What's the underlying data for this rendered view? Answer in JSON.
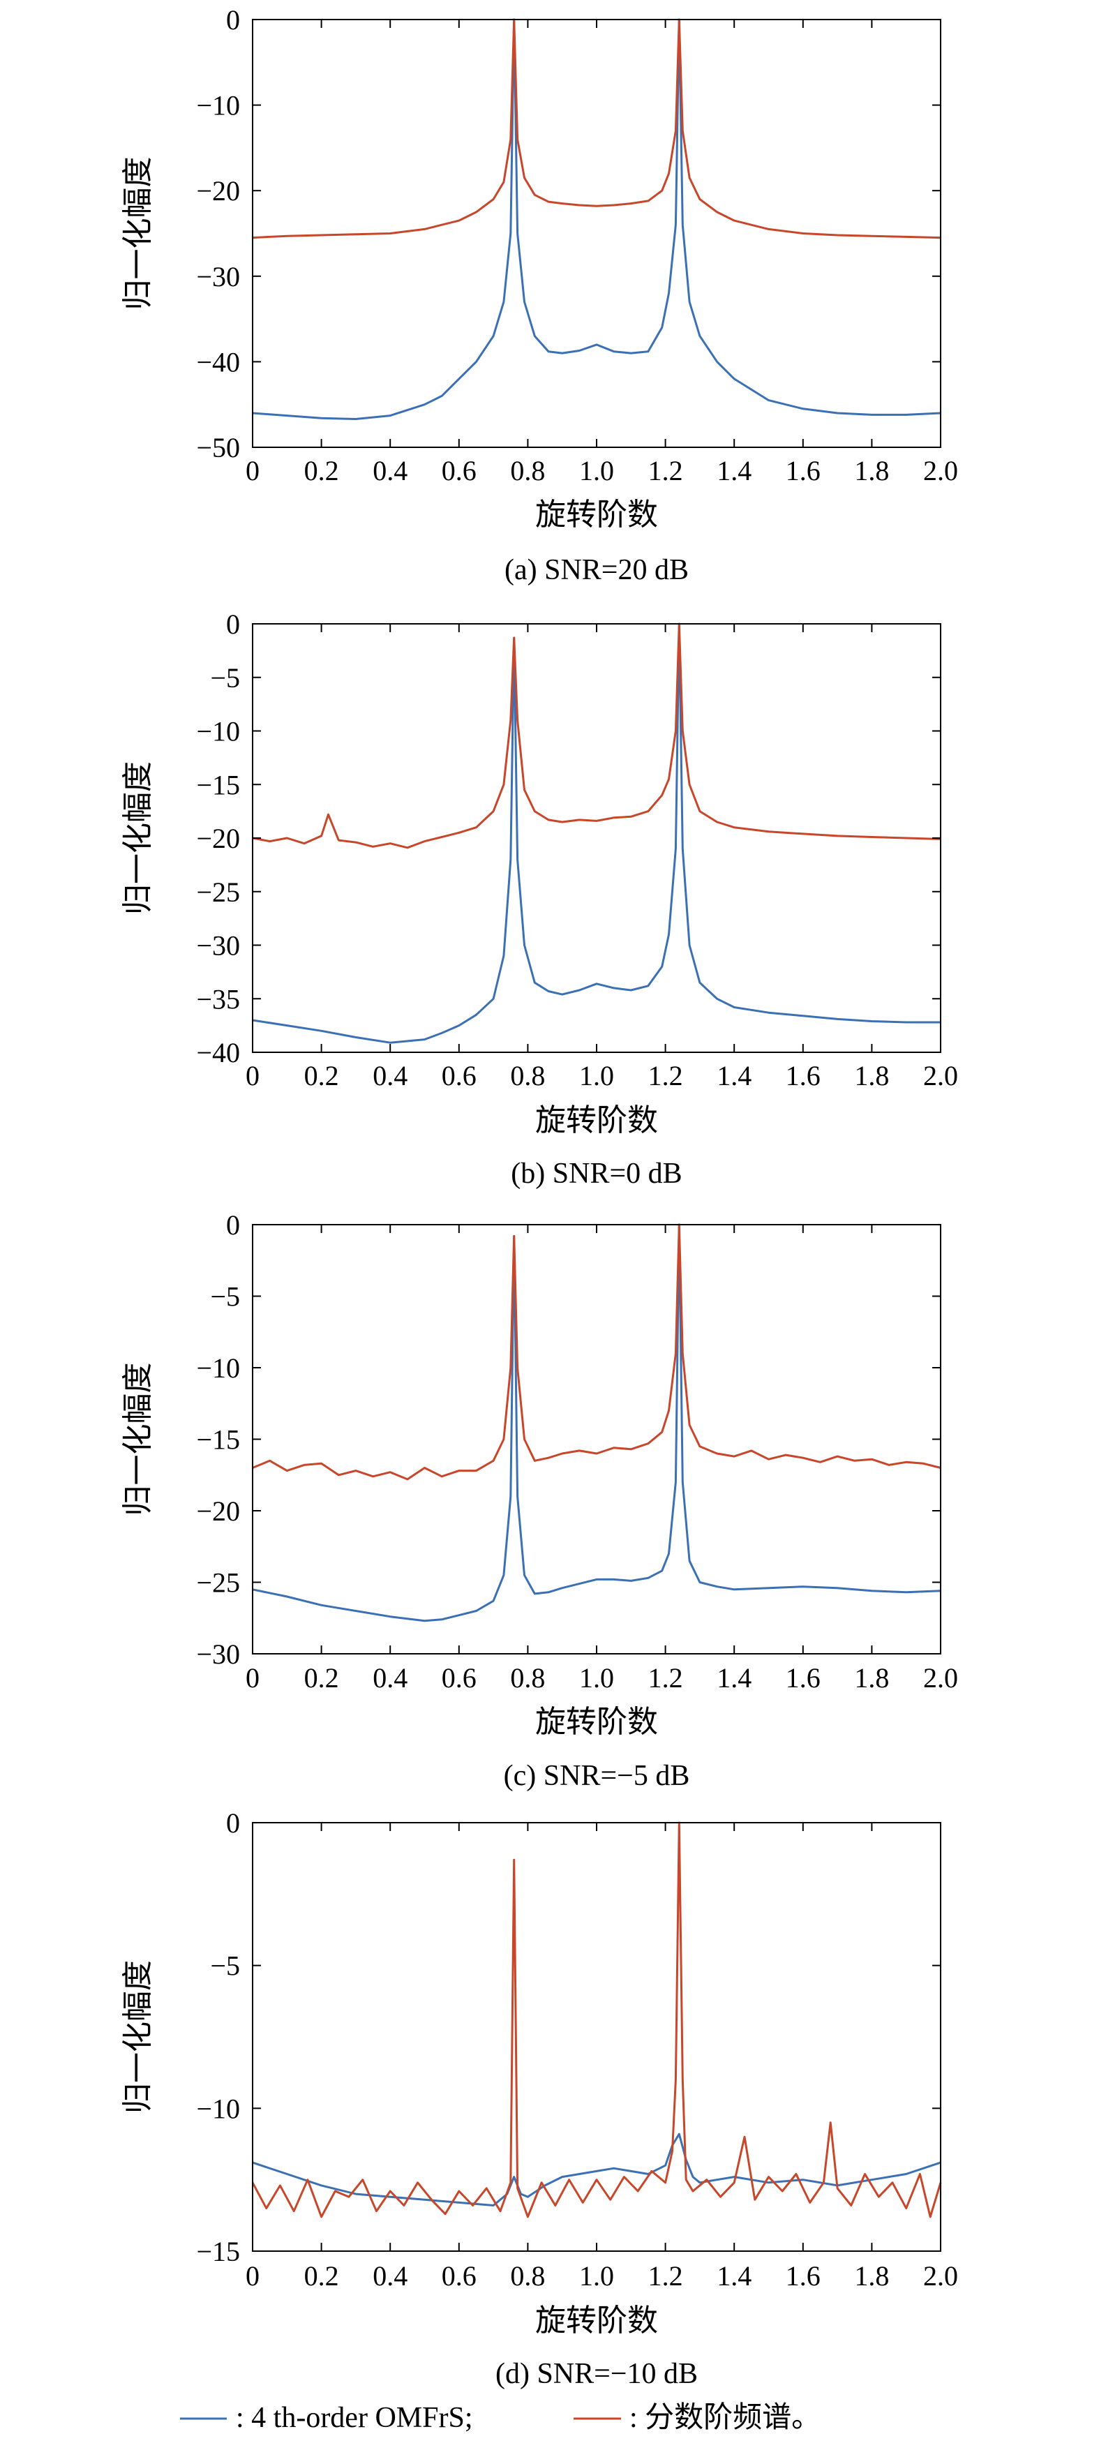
{
  "colors": {
    "blue": "#3b70b5",
    "red": "#c8472a"
  },
  "legend": [
    {
      "label": ": 4 th-order OMFrS;",
      "color": "#3b70b5"
    },
    {
      "label": ": 分数阶频谱。",
      "color": "#c8472a"
    }
  ],
  "chart_data": [
    {
      "type": "line",
      "caption": "(a) SNR=20 dB",
      "xlabel": "旋转阶数",
      "ylabel": "归一化幅度",
      "xlim": [
        0,
        2.0
      ],
      "ylim": [
        -50,
        0
      ],
      "xticks": [
        "0",
        "0.2",
        "0.4",
        "0.6",
        "0.8",
        "1.0",
        "1.2",
        "1.4",
        "1.6",
        "1.8",
        "2.0"
      ],
      "yticks": [
        "0",
        "−10",
        "−20",
        "−30",
        "−40",
        "−50"
      ],
      "series": [
        {
          "color": "#3b70b5",
          "x": [
            0,
            0.1,
            0.2,
            0.3,
            0.4,
            0.5,
            0.55,
            0.6,
            0.65,
            0.7,
            0.73,
            0.75,
            0.76,
            0.77,
            0.79,
            0.82,
            0.86,
            0.9,
            0.95,
            1.0,
            1.05,
            1.1,
            1.15,
            1.19,
            1.21,
            1.23,
            1.24,
            1.25,
            1.27,
            1.3,
            1.35,
            1.4,
            1.5,
            1.6,
            1.7,
            1.8,
            1.9,
            2.0
          ],
          "y": [
            -46,
            -46.3,
            -46.6,
            -46.7,
            -46.3,
            -45,
            -44,
            -42,
            -40,
            -37,
            -33,
            -25,
            0,
            -25,
            -33,
            -37,
            -38.8,
            -39,
            -38.7,
            -38,
            -38.8,
            -39,
            -38.8,
            -36,
            -32,
            -24,
            0,
            -24,
            -33,
            -37,
            -40,
            -42,
            -44.5,
            -45.5,
            -46,
            -46.2,
            -46.2,
            -46
          ]
        },
        {
          "color": "#c8472a",
          "x": [
            0,
            0.1,
            0.2,
            0.3,
            0.4,
            0.5,
            0.55,
            0.6,
            0.65,
            0.7,
            0.73,
            0.75,
            0.76,
            0.77,
            0.79,
            0.82,
            0.86,
            0.9,
            0.95,
            1.0,
            1.05,
            1.1,
            1.15,
            1.19,
            1.21,
            1.23,
            1.24,
            1.25,
            1.27,
            1.3,
            1.35,
            1.4,
            1.5,
            1.6,
            1.7,
            1.8,
            1.9,
            2.0
          ],
          "y": [
            -25.5,
            -25.3,
            -25.2,
            -25.1,
            -25,
            -24.5,
            -24,
            -23.5,
            -22.5,
            -21,
            -19,
            -14,
            0,
            -14,
            -18.5,
            -20.5,
            -21.3,
            -21.5,
            -21.7,
            -21.8,
            -21.7,
            -21.5,
            -21.2,
            -20,
            -18,
            -13,
            0,
            -13,
            -18.5,
            -21,
            -22.5,
            -23.5,
            -24.5,
            -25,
            -25.2,
            -25.3,
            -25.4,
            -25.5
          ]
        }
      ]
    },
    {
      "type": "line",
      "caption": "(b) SNR=0 dB",
      "xlabel": "旋转阶数",
      "ylabel": "归一化幅度",
      "xlim": [
        0,
        2.0
      ],
      "ylim": [
        -40,
        0
      ],
      "xticks": [
        "0",
        "0.2",
        "0.4",
        "0.6",
        "0.8",
        "1.0",
        "1.2",
        "1.4",
        "1.6",
        "1.8",
        "2.0"
      ],
      "yticks": [
        "0",
        "−5",
        "−10",
        "−15",
        "−20",
        "−25",
        "−30",
        "−35",
        "−40"
      ],
      "series": [
        {
          "color": "#3b70b5",
          "x": [
            0,
            0.1,
            0.2,
            0.3,
            0.4,
            0.5,
            0.55,
            0.6,
            0.65,
            0.7,
            0.73,
            0.75,
            0.76,
            0.77,
            0.79,
            0.82,
            0.86,
            0.9,
            0.95,
            1.0,
            1.05,
            1.1,
            1.15,
            1.19,
            1.21,
            1.23,
            1.24,
            1.25,
            1.27,
            1.3,
            1.35,
            1.4,
            1.5,
            1.6,
            1.7,
            1.8,
            1.9,
            2.0
          ],
          "y": [
            -37,
            -37.5,
            -38,
            -38.6,
            -39.1,
            -38.8,
            -38.2,
            -37.5,
            -36.5,
            -35,
            -31,
            -22,
            -1.3,
            -22,
            -30,
            -33.5,
            -34.3,
            -34.6,
            -34.2,
            -33.6,
            -34,
            -34.2,
            -33.8,
            -32,
            -29,
            -21,
            0,
            -21,
            -30,
            -33.5,
            -35,
            -35.8,
            -36.3,
            -36.6,
            -36.9,
            -37.1,
            -37.2,
            -37.2
          ]
        },
        {
          "color": "#c8472a",
          "x": [
            0,
            0.05,
            0.1,
            0.15,
            0.2,
            0.22,
            0.25,
            0.3,
            0.35,
            0.4,
            0.45,
            0.5,
            0.55,
            0.6,
            0.65,
            0.7,
            0.73,
            0.75,
            0.76,
            0.77,
            0.79,
            0.82,
            0.86,
            0.9,
            0.95,
            1.0,
            1.05,
            1.1,
            1.15,
            1.19,
            1.21,
            1.23,
            1.24,
            1.25,
            1.27,
            1.3,
            1.35,
            1.4,
            1.5,
            1.6,
            1.7,
            1.8,
            1.9,
            2.0
          ],
          "y": [
            -20,
            -20.3,
            -20,
            -20.5,
            -19.8,
            -17.8,
            -20.2,
            -20.4,
            -20.8,
            -20.5,
            -20.9,
            -20.3,
            -19.9,
            -19.5,
            -19,
            -17.5,
            -15,
            -9,
            -1.3,
            -9,
            -15.5,
            -17.5,
            -18.3,
            -18.5,
            -18.3,
            -18.4,
            -18.1,
            -18,
            -17.5,
            -16,
            -14.5,
            -10,
            0,
            -10,
            -15,
            -17.5,
            -18.5,
            -19,
            -19.4,
            -19.6,
            -19.8,
            -19.9,
            -20,
            -20.1
          ]
        }
      ]
    },
    {
      "type": "line",
      "caption": "(c) SNR=−5 dB",
      "xlabel": "旋转阶数",
      "ylabel": "归一化幅度",
      "xlim": [
        0,
        2.0
      ],
      "ylim": [
        -30,
        0
      ],
      "xticks": [
        "0",
        "0.2",
        "0.4",
        "0.6",
        "0.8",
        "1.0",
        "1.2",
        "1.4",
        "1.6",
        "1.8",
        "2.0"
      ],
      "yticks": [
        "0",
        "−5",
        "−10",
        "−15",
        "−20",
        "−25",
        "−30"
      ],
      "series": [
        {
          "color": "#3b70b5",
          "x": [
            0,
            0.1,
            0.2,
            0.3,
            0.4,
            0.5,
            0.55,
            0.6,
            0.65,
            0.7,
            0.73,
            0.75,
            0.76,
            0.77,
            0.79,
            0.82,
            0.86,
            0.9,
            0.95,
            1.0,
            1.05,
            1.1,
            1.15,
            1.19,
            1.21,
            1.23,
            1.24,
            1.25,
            1.27,
            1.3,
            1.35,
            1.4,
            1.5,
            1.6,
            1.7,
            1.8,
            1.9,
            2.0
          ],
          "y": [
            -25.5,
            -26,
            -26.6,
            -27,
            -27.4,
            -27.7,
            -27.6,
            -27.3,
            -27,
            -26.3,
            -24.5,
            -19,
            -0.8,
            -19,
            -24.5,
            -25.8,
            -25.7,
            -25.4,
            -25.1,
            -24.8,
            -24.8,
            -24.9,
            -24.7,
            -24.2,
            -23,
            -18,
            0,
            -18,
            -23.5,
            -25,
            -25.3,
            -25.5,
            -25.4,
            -25.3,
            -25.4,
            -25.6,
            -25.7,
            -25.6
          ]
        },
        {
          "color": "#c8472a",
          "x": [
            0,
            0.05,
            0.1,
            0.15,
            0.2,
            0.25,
            0.3,
            0.35,
            0.4,
            0.45,
            0.5,
            0.55,
            0.6,
            0.65,
            0.7,
            0.73,
            0.75,
            0.76,
            0.77,
            0.79,
            0.82,
            0.86,
            0.9,
            0.95,
            1.0,
            1.05,
            1.1,
            1.15,
            1.19,
            1.21,
            1.23,
            1.24,
            1.25,
            1.27,
            1.3,
            1.35,
            1.4,
            1.45,
            1.5,
            1.55,
            1.6,
            1.65,
            1.7,
            1.75,
            1.8,
            1.85,
            1.9,
            1.95,
            2.0
          ],
          "y": [
            -17,
            -16.5,
            -17.2,
            -16.8,
            -16.7,
            -17.5,
            -17.2,
            -17.6,
            -17.3,
            -17.8,
            -17,
            -17.6,
            -17.2,
            -17.2,
            -16.5,
            -15,
            -10,
            -0.8,
            -10,
            -15,
            -16.5,
            -16.3,
            -16,
            -15.8,
            -16,
            -15.6,
            -15.7,
            -15.3,
            -14.5,
            -13,
            -9,
            0,
            -9,
            -14,
            -15.5,
            -16,
            -16.2,
            -15.8,
            -16.4,
            -16.1,
            -16.3,
            -16.6,
            -16.2,
            -16.5,
            -16.4,
            -16.8,
            -16.6,
            -16.7,
            -17
          ]
        }
      ]
    },
    {
      "type": "line",
      "caption": "(d) SNR=−10 dB",
      "xlabel": "旋转阶数",
      "ylabel": "归一化幅度",
      "xlim": [
        0,
        2.0
      ],
      "ylim": [
        -15,
        0
      ],
      "xticks": [
        "0",
        "0.2",
        "0.4",
        "0.6",
        "0.8",
        "1.0",
        "1.2",
        "1.4",
        "1.6",
        "1.8",
        "2.0"
      ],
      "yticks": [
        "0",
        "−5",
        "−10",
        "−15"
      ],
      "series": [
        {
          "color": "#3b70b5",
          "x": [
            0,
            0.1,
            0.2,
            0.3,
            0.4,
            0.5,
            0.6,
            0.7,
            0.74,
            0.76,
            0.78,
            0.8,
            0.85,
            0.9,
            0.95,
            1.0,
            1.05,
            1.1,
            1.15,
            1.2,
            1.22,
            1.24,
            1.26,
            1.28,
            1.3,
            1.35,
            1.4,
            1.5,
            1.6,
            1.7,
            1.8,
            1.9,
            2.0
          ],
          "y": [
            -11.9,
            -12.3,
            -12.7,
            -13,
            -13.1,
            -13.2,
            -13.3,
            -13.4,
            -13,
            -12.4,
            -13,
            -13.1,
            -12.7,
            -12.4,
            -12.3,
            -12.2,
            -12.1,
            -12.2,
            -12.3,
            -12,
            -11.3,
            -10.9,
            -11.8,
            -12.4,
            -12.6,
            -12.5,
            -12.4,
            -12.6,
            -12.5,
            -12.7,
            -12.5,
            -12.3,
            -11.9
          ]
        },
        {
          "color": "#c8472a",
          "x": [
            0,
            0.04,
            0.08,
            0.12,
            0.16,
            0.2,
            0.24,
            0.28,
            0.32,
            0.36,
            0.4,
            0.44,
            0.48,
            0.52,
            0.56,
            0.6,
            0.64,
            0.68,
            0.72,
            0.75,
            0.76,
            0.77,
            0.8,
            0.84,
            0.88,
            0.92,
            0.96,
            1.0,
            1.04,
            1.08,
            1.12,
            1.16,
            1.2,
            1.22,
            1.23,
            1.24,
            1.25,
            1.26,
            1.28,
            1.32,
            1.36,
            1.4,
            1.43,
            1.46,
            1.5,
            1.54,
            1.58,
            1.62,
            1.66,
            1.68,
            1.7,
            1.74,
            1.78,
            1.82,
            1.86,
            1.9,
            1.94,
            1.97,
            2.0
          ],
          "y": [
            -12.6,
            -13.5,
            -12.7,
            -13.6,
            -12.5,
            -13.8,
            -12.9,
            -13.1,
            -12.5,
            -13.6,
            -12.9,
            -13.4,
            -12.6,
            -13.2,
            -13.7,
            -12.9,
            -13.4,
            -12.8,
            -13.6,
            -12.6,
            -1.3,
            -12.8,
            -13.8,
            -12.6,
            -13.4,
            -12.5,
            -13.3,
            -12.5,
            -13.2,
            -12.4,
            -12.9,
            -12.2,
            -12.6,
            -11.5,
            -9,
            0,
            -9,
            -12.5,
            -12.9,
            -12.5,
            -13.1,
            -12.6,
            -11,
            -13.2,
            -12.4,
            -12.9,
            -12.3,
            -13.3,
            -12.6,
            -10.5,
            -12.8,
            -13.4,
            -12.3,
            -13.1,
            -12.6,
            -13.5,
            -12.3,
            -13.8,
            -12.6
          ]
        }
      ]
    }
  ]
}
